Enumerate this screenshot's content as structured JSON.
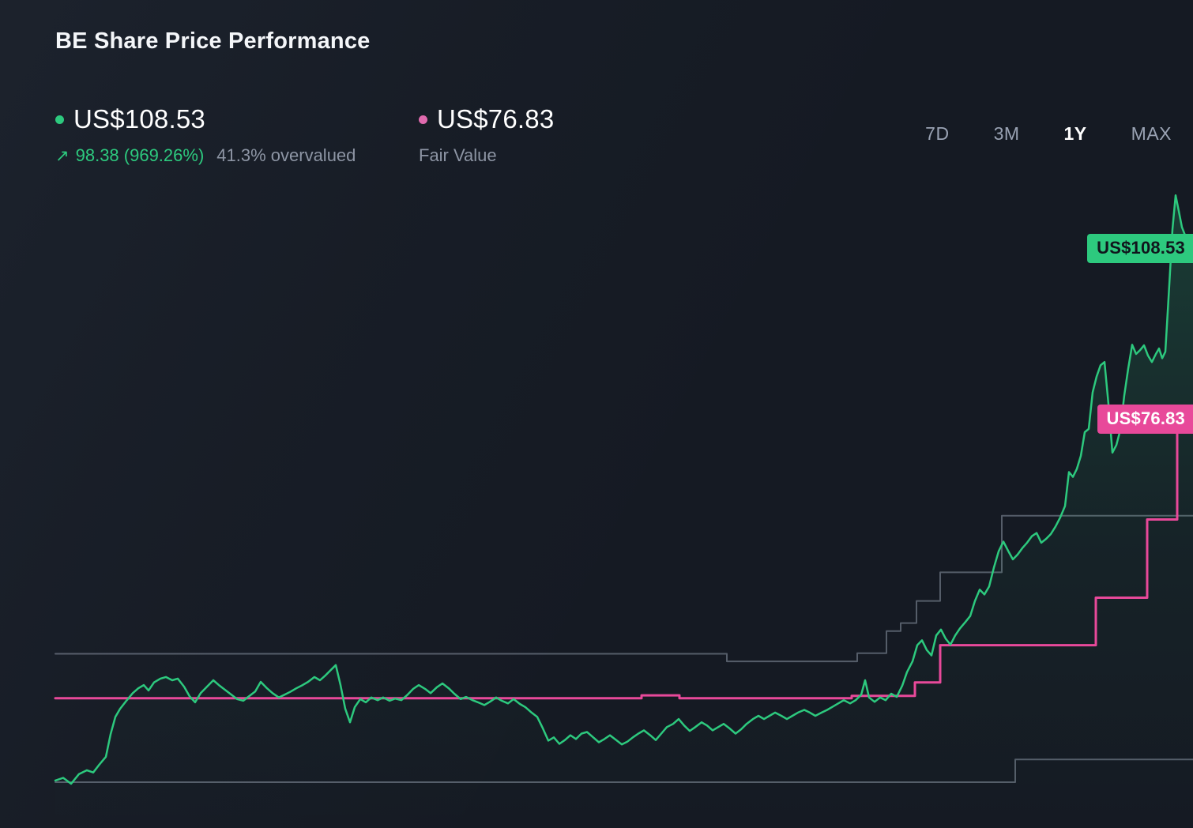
{
  "header": {
    "title": "BE Share Price Performance"
  },
  "legend": {
    "share_price": {
      "value": "US$108.53",
      "change": "98.38 (969.26%)",
      "note": "41.3% overvalued"
    },
    "fair_value": {
      "value": "US$76.83",
      "label": "Fair Value"
    }
  },
  "icons": {
    "trend_up": "↗"
  },
  "range_selector": {
    "options": [
      {
        "label": "7D",
        "active": false
      },
      {
        "label": "3M",
        "active": false
      },
      {
        "label": "1Y",
        "active": true
      },
      {
        "label": "MAX",
        "active": false
      }
    ]
  },
  "colors": {
    "background": "#151a23",
    "share_price": "#2dc97e",
    "fair_value": "#e8499a",
    "band": "rgba(150,160,175,0.5)",
    "muted_text": "#8d95a4"
  },
  "chart_data": {
    "type": "line",
    "title": "BE Share Price Performance",
    "currency": "US$",
    "grid": false,
    "legend_position": "top-left",
    "ylim": [
      5,
      120
    ],
    "x_unit": "timeline-px",
    "x_domain": [
      70,
      1510
    ],
    "series": [
      {
        "name": "Share Price",
        "color": "#2dc97e",
        "style": "line",
        "width": 2.5,
        "area_fill": true,
        "points": [
          [
            70,
            9.7
          ],
          [
            80,
            10.2
          ],
          [
            90,
            9.1
          ],
          [
            100,
            10.9
          ],
          [
            110,
            11.6
          ],
          [
            118,
            11.2
          ],
          [
            126,
            12.7
          ],
          [
            134,
            14.1
          ],
          [
            140,
            18.3
          ],
          [
            146,
            21.5
          ],
          [
            152,
            23.0
          ],
          [
            160,
            24.5
          ],
          [
            168,
            25.9
          ],
          [
            175,
            26.8
          ],
          [
            182,
            27.4
          ],
          [
            188,
            26.4
          ],
          [
            195,
            27.9
          ],
          [
            203,
            28.6
          ],
          [
            210,
            28.9
          ],
          [
            218,
            28.3
          ],
          [
            225,
            28.6
          ],
          [
            233,
            27.1
          ],
          [
            240,
            25.3
          ],
          [
            247,
            24.2
          ],
          [
            254,
            25.9
          ],
          [
            262,
            27.1
          ],
          [
            270,
            28.3
          ],
          [
            277,
            27.4
          ],
          [
            285,
            26.5
          ],
          [
            293,
            25.6
          ],
          [
            300,
            24.8
          ],
          [
            308,
            24.5
          ],
          [
            315,
            25.3
          ],
          [
            323,
            26.2
          ],
          [
            330,
            28.0
          ],
          [
            338,
            26.8
          ],
          [
            345,
            25.9
          ],
          [
            353,
            25.1
          ],
          [
            360,
            25.6
          ],
          [
            368,
            26.2
          ],
          [
            375,
            26.8
          ],
          [
            383,
            27.4
          ],
          [
            390,
            28.0
          ],
          [
            398,
            28.9
          ],
          [
            405,
            28.3
          ],
          [
            412,
            29.2
          ],
          [
            418,
            30.1
          ],
          [
            425,
            31.1
          ],
          [
            431,
            27.4
          ],
          [
            437,
            23.0
          ],
          [
            443,
            20.5
          ],
          [
            449,
            23.3
          ],
          [
            456,
            24.8
          ],
          [
            463,
            24.2
          ],
          [
            470,
            25.1
          ],
          [
            478,
            24.6
          ],
          [
            485,
            25.1
          ],
          [
            493,
            24.5
          ],
          [
            500,
            24.9
          ],
          [
            508,
            24.6
          ],
          [
            515,
            25.5
          ],
          [
            523,
            26.7
          ],
          [
            530,
            27.4
          ],
          [
            538,
            26.7
          ],
          [
            545,
            25.9
          ],
          [
            553,
            27.0
          ],
          [
            560,
            27.7
          ],
          [
            568,
            26.8
          ],
          [
            575,
            25.8
          ],
          [
            583,
            24.8
          ],
          [
            590,
            25.2
          ],
          [
            598,
            24.6
          ],
          [
            605,
            24.2
          ],
          [
            613,
            23.7
          ],
          [
            620,
            24.3
          ],
          [
            628,
            25.1
          ],
          [
            635,
            24.5
          ],
          [
            643,
            24.0
          ],
          [
            650,
            24.8
          ],
          [
            658,
            23.9
          ],
          [
            665,
            23.3
          ],
          [
            672,
            22.4
          ],
          [
            680,
            21.5
          ],
          [
            687,
            19.4
          ],
          [
            694,
            17.1
          ],
          [
            701,
            17.7
          ],
          [
            708,
            16.5
          ],
          [
            715,
            17.2
          ],
          [
            722,
            18.1
          ],
          [
            729,
            17.4
          ],
          [
            736,
            18.4
          ],
          [
            743,
            18.7
          ],
          [
            750,
            17.8
          ],
          [
            758,
            16.8
          ],
          [
            765,
            17.4
          ],
          [
            772,
            18.1
          ],
          [
            780,
            17.2
          ],
          [
            787,
            16.4
          ],
          [
            794,
            16.9
          ],
          [
            801,
            17.7
          ],
          [
            808,
            18.4
          ],
          [
            815,
            19.0
          ],
          [
            823,
            18.1
          ],
          [
            830,
            17.2
          ],
          [
            837,
            18.4
          ],
          [
            844,
            19.6
          ],
          [
            852,
            20.2
          ],
          [
            859,
            21.1
          ],
          [
            866,
            19.9
          ],
          [
            873,
            18.9
          ],
          [
            880,
            19.6
          ],
          [
            888,
            20.5
          ],
          [
            895,
            19.9
          ],
          [
            902,
            19.0
          ],
          [
            909,
            19.6
          ],
          [
            916,
            20.2
          ],
          [
            924,
            19.3
          ],
          [
            931,
            18.4
          ],
          [
            938,
            19.2
          ],
          [
            945,
            20.2
          ],
          [
            953,
            21.1
          ],
          [
            960,
            21.7
          ],
          [
            967,
            21.1
          ],
          [
            974,
            21.7
          ],
          [
            981,
            22.3
          ],
          [
            989,
            21.7
          ],
          [
            996,
            21.1
          ],
          [
            1003,
            21.7
          ],
          [
            1010,
            22.3
          ],
          [
            1018,
            22.8
          ],
          [
            1025,
            22.3
          ],
          [
            1032,
            21.7
          ],
          [
            1040,
            22.3
          ],
          [
            1047,
            22.8
          ],
          [
            1054,
            23.4
          ],
          [
            1061,
            24.0
          ],
          [
            1068,
            24.6
          ],
          [
            1076,
            24.0
          ],
          [
            1083,
            24.6
          ],
          [
            1090,
            25.6
          ],
          [
            1095,
            28.3
          ],
          [
            1100,
            25.1
          ],
          [
            1107,
            24.3
          ],
          [
            1114,
            25.1
          ],
          [
            1121,
            24.6
          ],
          [
            1128,
            25.8
          ],
          [
            1135,
            25.2
          ],
          [
            1142,
            27.3
          ],
          [
            1148,
            29.8
          ],
          [
            1155,
            31.8
          ],
          [
            1161,
            34.8
          ],
          [
            1167,
            35.7
          ],
          [
            1173,
            33.9
          ],
          [
            1179,
            32.9
          ],
          [
            1185,
            36.6
          ],
          [
            1191,
            37.7
          ],
          [
            1197,
            36.0
          ],
          [
            1203,
            34.9
          ],
          [
            1209,
            36.6
          ],
          [
            1215,
            37.9
          ],
          [
            1222,
            39.1
          ],
          [
            1228,
            40.2
          ],
          [
            1234,
            43.0
          ],
          [
            1240,
            45.1
          ],
          [
            1246,
            44.2
          ],
          [
            1252,
            45.7
          ],
          [
            1258,
            49.2
          ],
          [
            1264,
            52.2
          ],
          [
            1270,
            54.0
          ],
          [
            1276,
            52.3
          ],
          [
            1282,
            50.7
          ],
          [
            1288,
            51.6
          ],
          [
            1294,
            52.8
          ],
          [
            1300,
            53.8
          ],
          [
            1306,
            55.0
          ],
          [
            1312,
            55.6
          ],
          [
            1318,
            53.8
          ],
          [
            1324,
            54.5
          ],
          [
            1330,
            55.4
          ],
          [
            1336,
            56.8
          ],
          [
            1342,
            58.5
          ],
          [
            1348,
            60.6
          ],
          [
            1353,
            66.9
          ],
          [
            1358,
            66.0
          ],
          [
            1363,
            67.5
          ],
          [
            1368,
            69.9
          ],
          [
            1373,
            74.3
          ],
          [
            1378,
            74.9
          ],
          [
            1383,
            81.7
          ],
          [
            1388,
            84.6
          ],
          [
            1393,
            86.7
          ],
          [
            1398,
            87.3
          ],
          [
            1403,
            79.5
          ],
          [
            1408,
            70.5
          ],
          [
            1413,
            71.9
          ],
          [
            1418,
            74.7
          ],
          [
            1423,
            81.1
          ],
          [
            1428,
            86.1
          ],
          [
            1433,
            90.5
          ],
          [
            1438,
            88.8
          ],
          [
            1443,
            89.5
          ],
          [
            1448,
            90.4
          ],
          [
            1453,
            88.5
          ],
          [
            1458,
            87.3
          ],
          [
            1463,
            88.8
          ],
          [
            1467,
            89.8
          ],
          [
            1471,
            88.0
          ],
          [
            1475,
            89.2
          ],
          [
            1480,
            101.6
          ],
          [
            1484,
            111.9
          ],
          [
            1488,
            118.2
          ],
          [
            1492,
            115.3
          ],
          [
            1496,
            112.3
          ],
          [
            1501,
            110.4
          ],
          [
            1505,
            109.4
          ],
          [
            1510,
            108.53
          ]
        ]
      },
      {
        "name": "Fair Value",
        "color": "#e8499a",
        "style": "step",
        "width": 3,
        "points": [
          [
            70,
            24.95
          ],
          [
            812,
            24.95
          ],
          [
            812,
            25.5
          ],
          [
            860,
            25.5
          ],
          [
            860,
            24.95
          ],
          [
            1078,
            24.95
          ],
          [
            1078,
            25.4
          ],
          [
            1158,
            25.4
          ],
          [
            1158,
            27.9
          ],
          [
            1190,
            27.9
          ],
          [
            1190,
            34.8
          ],
          [
            1387,
            34.8
          ],
          [
            1387,
            43.6
          ],
          [
            1452,
            43.6
          ],
          [
            1452,
            58.1
          ],
          [
            1490,
            58.1
          ],
          [
            1490,
            76.83
          ],
          [
            1510,
            76.83
          ]
        ]
      },
      {
        "name": "Valuation Band Upper",
        "color": "rgba(150,160,175,0.5)",
        "style": "step",
        "width": 2,
        "points": [
          [
            70,
            33.2
          ],
          [
            920,
            33.2
          ],
          [
            920,
            31.8
          ],
          [
            1085,
            31.8
          ],
          [
            1085,
            33.3
          ],
          [
            1122,
            33.3
          ],
          [
            1122,
            37.4
          ],
          [
            1140,
            37.4
          ],
          [
            1140,
            38.9
          ],
          [
            1160,
            38.9
          ],
          [
            1160,
            43.0
          ],
          [
            1190,
            43.0
          ],
          [
            1190,
            48.3
          ],
          [
            1268,
            48.3
          ],
          [
            1268,
            58.8
          ],
          [
            1510,
            58.8
          ]
        ]
      },
      {
        "name": "Valuation Band Lower",
        "color": "rgba(150,160,175,0.5)",
        "style": "step",
        "width": 2,
        "points": [
          [
            70,
            9.4
          ],
          [
            1285,
            9.4
          ],
          [
            1285,
            13.6
          ],
          [
            1510,
            13.6
          ]
        ]
      }
    ],
    "end_labels": [
      {
        "text": "US$108.53",
        "value": 108.53,
        "color": "#2dc97e",
        "text_color": "#10151c"
      },
      {
        "text": "US$76.83",
        "value": 76.83,
        "color": "#e8499a",
        "text_color": "#ffffff"
      }
    ]
  }
}
